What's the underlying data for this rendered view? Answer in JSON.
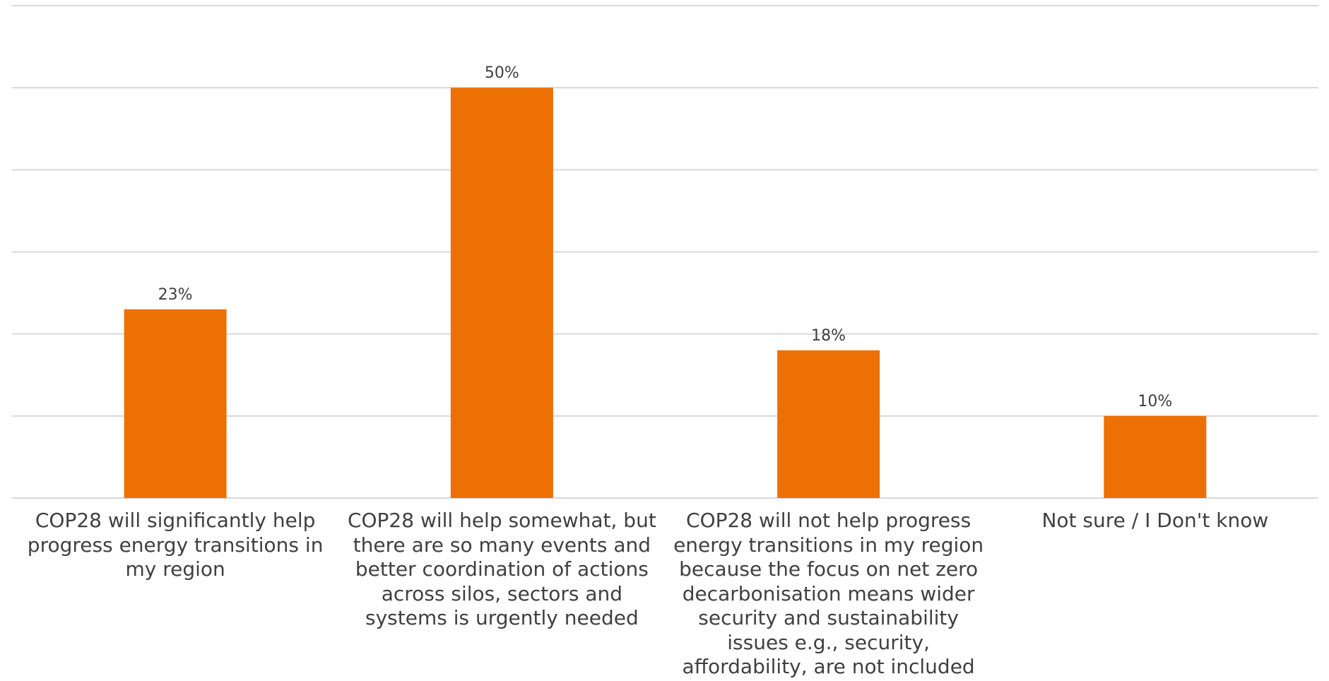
{
  "chart_data": {
    "type": "bar",
    "categories": [
      "COP28 will significantly help progress energy transitions in my region",
      "COP28 will help somewhat, but there are so many events and better coordination of actions across silos, sectors and systems is urgently needed",
      "COP28 will not help progress energy transitions in my region because the focus on net zero decarbonisation means wider security and sustainability issues e.g., security, affordability, are not included",
      "Not sure / I Don't know"
    ],
    "values": [
      23,
      50,
      18,
      10
    ],
    "data_labels": [
      "23%",
      "50%",
      "18%",
      "10%"
    ],
    "ylim": [
      0,
      60
    ],
    "gridlines": [
      0,
      10,
      20,
      30,
      40,
      50,
      60
    ],
    "grid": true,
    "title": "",
    "xlabel": "",
    "ylabel": "",
    "bar_color": "#ED7004",
    "grid_color": "#D9D9D9",
    "label_color": "#404040"
  }
}
